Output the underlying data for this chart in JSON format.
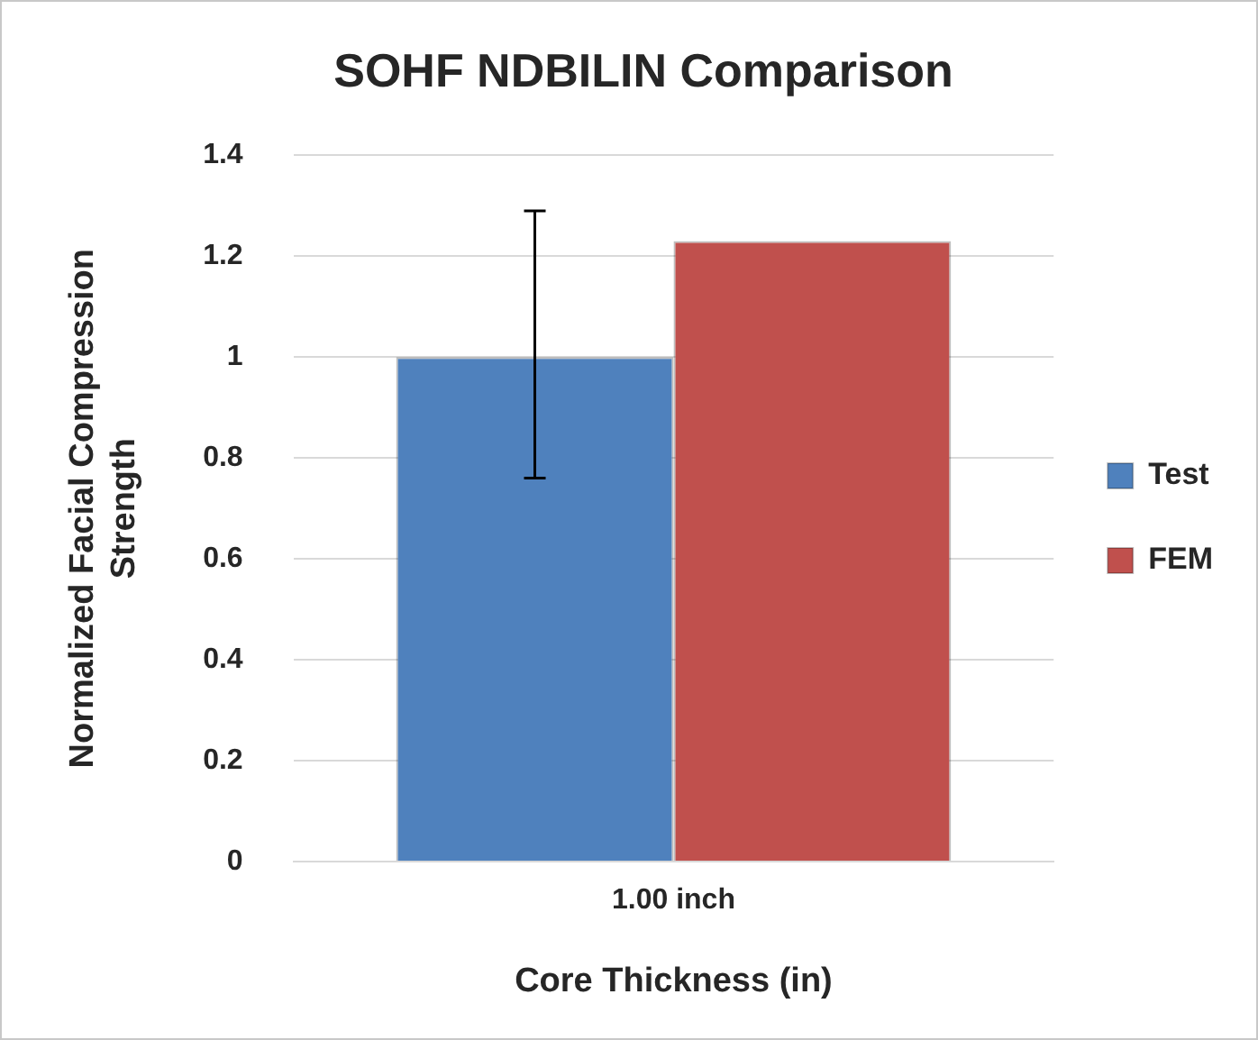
{
  "chart_data": {
    "type": "bar",
    "title": "SOHF NDBILIN Comparison",
    "xlabel": "Core Thickness (in)",
    "ylabel": "Normalized Facial Compression Strength",
    "categories": [
      "1.00 inch"
    ],
    "series": [
      {
        "name": "Test",
        "color": "#4f81bd",
        "values": [
          1.0
        ],
        "errors": [
          [
            0.76,
            1.29
          ]
        ]
      },
      {
        "name": "FEM",
        "color": "#c0504d",
        "values": [
          1.23
        ]
      }
    ],
    "ylim": [
      0,
      1.4
    ],
    "yticks": [
      0,
      0.2,
      0.4,
      0.6,
      0.8,
      1,
      1.2,
      1.4
    ],
    "grid": "y",
    "legend": "right"
  }
}
